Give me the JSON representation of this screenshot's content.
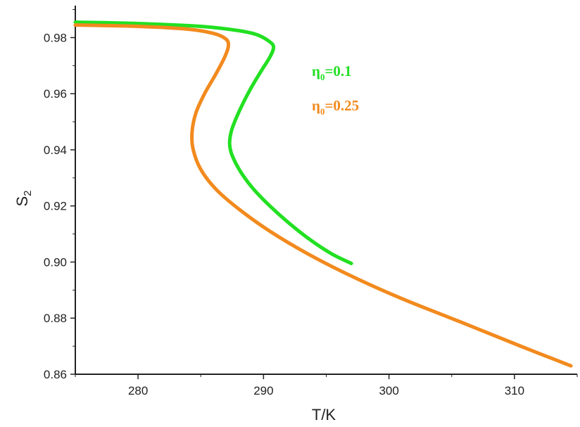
{
  "chart_data": {
    "type": "line",
    "title": "",
    "xlabel": "T/K",
    "ylabel_main": "S",
    "ylabel_sub": "2",
    "xlim": [
      275,
      315
    ],
    "ylim": [
      0.86,
      0.99
    ],
    "xticks": [
      280,
      290,
      300,
      310
    ],
    "yticks": [
      0.86,
      0.88,
      0.9,
      0.92,
      0.94,
      0.96,
      0.98
    ],
    "ytick_labels": [
      "0.86",
      "0.88",
      "0.90",
      "0.92",
      "0.94",
      "0.96",
      "0.98"
    ],
    "grid": false,
    "legend_position": "top-right",
    "series": [
      {
        "name_main": "η",
        "name_sub": "0",
        "name_rest": "=0.1",
        "color": "#22e022",
        "x": [
          275.0,
          280.0,
          285.0,
          288.0,
          289.5,
          290.5,
          290.8,
          290.5,
          289.8,
          289.0,
          288.3,
          287.7,
          287.4,
          287.3,
          287.5,
          288.2,
          289.2,
          290.5,
          292.0,
          293.7,
          295.4,
          297.0
        ],
        "y": [
          0.9855,
          0.985,
          0.984,
          0.9825,
          0.981,
          0.9785,
          0.9765,
          0.973,
          0.968,
          0.962,
          0.956,
          0.95,
          0.946,
          0.942,
          0.938,
          0.932,
          0.926,
          0.92,
          0.914,
          0.908,
          0.903,
          0.8995
        ]
      },
      {
        "name_main": "η",
        "name_sub": "0",
        "name_rest": "=0.25",
        "color": "#f28a1e",
        "x": [
          275.0,
          280.0,
          284.0,
          286.0,
          287.0,
          287.2,
          286.9,
          286.2,
          285.3,
          284.6,
          284.3,
          284.4,
          285.0,
          286.2,
          288.0,
          290.5,
          293.5,
          297.0,
          301.0,
          305.5,
          310.5,
          314.5
        ],
        "y": [
          0.9845,
          0.984,
          0.983,
          0.9815,
          0.9795,
          0.977,
          0.973,
          0.967,
          0.96,
          0.953,
          0.946,
          0.94,
          0.933,
          0.926,
          0.919,
          0.911,
          0.903,
          0.895,
          0.887,
          0.879,
          0.87,
          0.863
        ]
      }
    ]
  }
}
